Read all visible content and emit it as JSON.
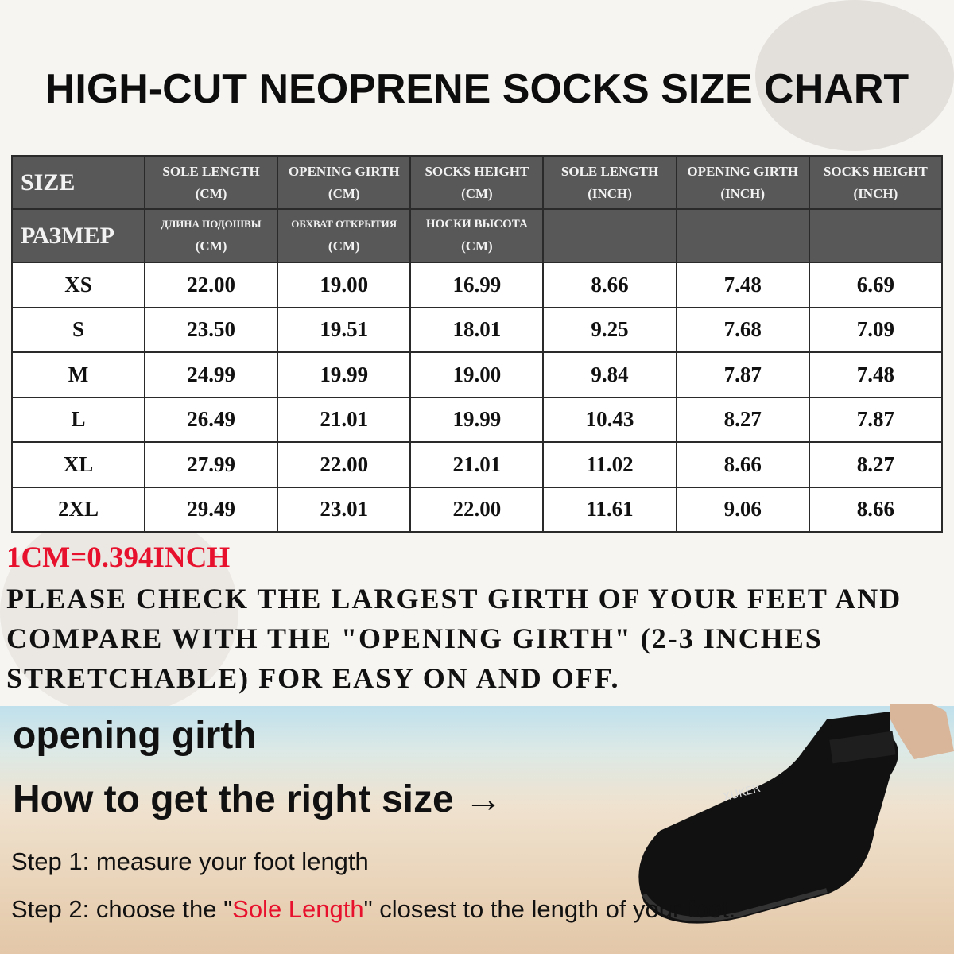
{
  "title": "HIGH-CUT NEOPRENE SOCKS SIZE CHART",
  "table": {
    "header_en": [
      "SIZE",
      "SOLE LENGTH",
      "(CM)",
      "OPENING GIRTH",
      "(CM)",
      "SOCKS HEIGHT",
      "(CM)",
      "SOLE LENGTH",
      "(INCH)",
      "OPENING GIRTH",
      "(INCH)",
      "SOCKS HEIGHT",
      "(INCH)"
    ],
    "header_ru": [
      "РАЗМЕР",
      "ДЛИНА ПОДОШВЫ",
      "(CM)",
      "ОБХВАТ ОТКРЫТИЯ",
      "(CM)",
      "НОСКИ ВЫСОТА",
      "(CM)"
    ],
    "rows": [
      [
        "XS",
        "22.00",
        "19.00",
        "16.99",
        "8.66",
        "7.48",
        "6.69"
      ],
      [
        "S",
        "23.50",
        "19.51",
        "18.01",
        "9.25",
        "7.68",
        "7.09"
      ],
      [
        "M",
        "24.99",
        "19.99",
        "19.00",
        "9.84",
        "7.87",
        "7.48"
      ],
      [
        "L",
        "26.49",
        "21.01",
        "19.99",
        "10.43",
        "8.27",
        "7.87"
      ],
      [
        "XL",
        "27.99",
        "22.00",
        "21.01",
        "11.02",
        "8.66",
        "8.27"
      ],
      [
        "2XL",
        "29.49",
        "23.01",
        "22.00",
        "11.61",
        "9.06",
        "8.66"
      ]
    ]
  },
  "conversion": "1CM=0.394INCH",
  "note": "PLEASE CHECK THE LARGEST GIRTH OF YOUR FEET AND COMPARE WITH THE \"OPENING GIRTH\" (2-3 INCHES STRETCHABLE) FOR EASY ON AND OFF.",
  "guide": {
    "opening_girth": "opening girth",
    "how_to": "How to get the right size →",
    "step1": "Step 1: measure your foot length",
    "step2_pre": "Step 2: choose the \"",
    "step2_highlight": "Sole Length",
    "step2_post": "\" closest to the length of your foot."
  },
  "brand": "XUKER",
  "colors": {
    "header_bg": "#585858",
    "accent_red": "#e8112d"
  }
}
